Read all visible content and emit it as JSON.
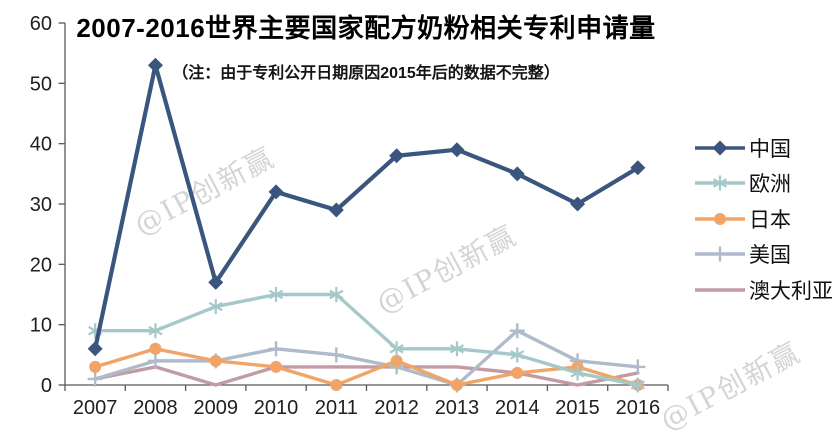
{
  "title": "2007-2016世界主要国家配方奶粉相关专利申请量",
  "subtitle": "（注：由于专利公开日期原因2015年后的数据不完整）",
  "watermark": "@IP创新赢",
  "chart_data": {
    "type": "line",
    "title": "2007-2016世界主要国家配方奶粉相关专利申请量",
    "subtitle": "（注：由于专利公开日期原因2015年后的数据不完整）",
    "xlabel": "",
    "ylabel": "",
    "categories": [
      "2007",
      "2008",
      "2009",
      "2010",
      "2011",
      "2012",
      "2013",
      "2014",
      "2015",
      "2016"
    ],
    "series": [
      {
        "key": "china",
        "name": "中国",
        "color": "#3A567E",
        "marker": "diamond",
        "values": [
          6,
          53,
          17,
          32,
          29,
          38,
          39,
          35,
          30,
          36
        ]
      },
      {
        "key": "europe",
        "name": "欧洲",
        "color": "#A5C8CA",
        "marker": "star",
        "values": [
          9,
          9,
          13,
          15,
          15,
          6,
          6,
          5,
          2,
          0
        ]
      },
      {
        "key": "japan",
        "name": "日本",
        "color": "#F0A467",
        "marker": "circle",
        "values": [
          3,
          6,
          4,
          3,
          0,
          4,
          0,
          2,
          3,
          0
        ]
      },
      {
        "key": "usa",
        "name": "美国",
        "color": "#AFBACB",
        "marker": "plus",
        "values": [
          1,
          4,
          4,
          6,
          5,
          3,
          0,
          9,
          4,
          3
        ]
      },
      {
        "key": "australia",
        "name": "澳大利亚",
        "color": "#C39BA4",
        "marker": "none",
        "values": [
          1,
          3,
          0,
          3,
          3,
          3,
          3,
          2,
          0,
          2
        ]
      }
    ],
    "ylim": [
      0,
      60
    ],
    "yticks": [
      0,
      10,
      20,
      30,
      40,
      50,
      60
    ],
    "grid": false,
    "legend_position": "right",
    "axis_color": "#595959",
    "background": "#ffffff"
  }
}
